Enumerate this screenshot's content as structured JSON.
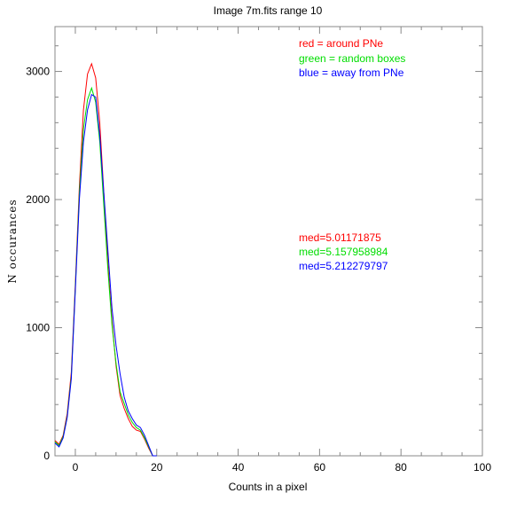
{
  "chart_data": {
    "type": "line",
    "title": "Image 7m.fits   range 10",
    "xlabel": "Counts in a pixel",
    "ylabel": "N occurances",
    "xlim": [
      -5,
      100
    ],
    "ylim": [
      0,
      3350
    ],
    "x_ticks": [
      0,
      20,
      40,
      60,
      80,
      100
    ],
    "y_ticks": [
      0,
      1000,
      2000,
      3000
    ],
    "grid": false,
    "legend": [
      {
        "text": "red = around PNe",
        "color": "#ff0000"
      },
      {
        "text": "green = random boxes",
        "color": "#00dd00"
      },
      {
        "text": "blue = away from PNe",
        "color": "#0000ff"
      }
    ],
    "annotations": [
      {
        "text": "med=5.01171875",
        "color": "#ff0000"
      },
      {
        "text": "med=5.157958984",
        "color": "#00dd00"
      },
      {
        "text": "med=5.212279797",
        "color": "#0000ff"
      }
    ],
    "series": [
      {
        "color": "#ff0000",
        "x": [
          -5,
          -4,
          -3,
          -2,
          -1,
          0,
          1,
          2,
          3,
          4,
          5,
          6,
          7,
          8,
          9,
          10,
          11,
          12,
          13,
          14,
          15,
          16,
          17,
          18,
          19,
          20
        ],
        "y": [
          120,
          90,
          160,
          330,
          650,
          1350,
          2100,
          2700,
          2980,
          3060,
          2950,
          2600,
          2050,
          1500,
          1050,
          700,
          470,
          370,
          290,
          230,
          200,
          190,
          130,
          60,
          0,
          0
        ]
      },
      {
        "color": "#00dd00",
        "x": [
          -5,
          -4,
          -3,
          -2,
          -1,
          0,
          1,
          2,
          3,
          4,
          5,
          6,
          7,
          8,
          9,
          10,
          11,
          12,
          13,
          14,
          15,
          16,
          17,
          18,
          19,
          20
        ],
        "y": [
          110,
          80,
          150,
          310,
          620,
          1320,
          2050,
          2550,
          2780,
          2870,
          2760,
          2450,
          1950,
          1450,
          1020,
          720,
          500,
          410,
          320,
          260,
          220,
          200,
          140,
          70,
          0,
          0
        ]
      },
      {
        "color": "#0000ff",
        "x": [
          -5,
          -4,
          -3,
          -2,
          -1,
          0,
          1,
          2,
          3,
          4,
          5,
          6,
          7,
          8,
          9,
          10,
          11,
          12,
          13,
          14,
          15,
          16,
          17,
          18,
          19,
          20
        ],
        "y": [
          100,
          70,
          140,
          300,
          600,
          1300,
          2000,
          2450,
          2700,
          2820,
          2800,
          2500,
          2050,
          1600,
          1150,
          860,
          640,
          460,
          350,
          290,
          240,
          220,
          160,
          80,
          0,
          0
        ]
      }
    ]
  }
}
